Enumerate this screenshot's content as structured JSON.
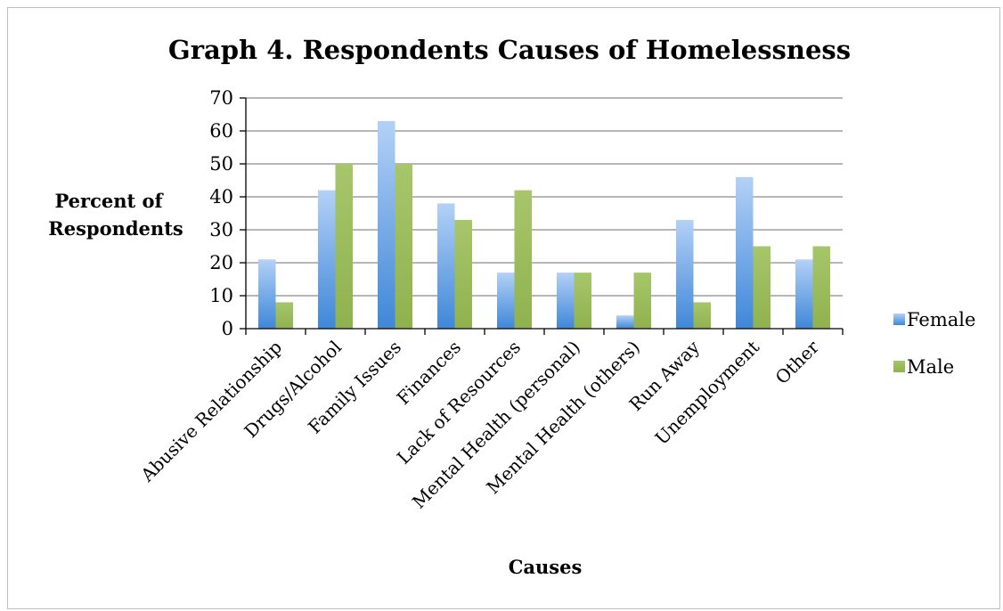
{
  "chart_data": {
    "type": "bar",
    "title": "Graph 4. Respondents Causes of Homelessness",
    "xlabel": "Causes",
    "ylabel_lines": [
      "Percent of",
      "Respondents"
    ],
    "ylim": [
      0,
      70
    ],
    "yticks": [
      0,
      10,
      20,
      30,
      40,
      50,
      60,
      70
    ],
    "grid": true,
    "legend_position": "right",
    "categories": [
      "Abusive Relationship",
      "Drugs/Alcohol",
      "Family Issues",
      "Finances",
      "Lack of Resources",
      "Mental Health (personal)",
      "Mental Health (others)",
      "Run Away",
      "Unemployment",
      "Other"
    ],
    "series": [
      {
        "name": "Female",
        "color": "#5b9bd5",
        "values": [
          21,
          42,
          63,
          38,
          17,
          17,
          4,
          33,
          46,
          21
        ]
      },
      {
        "name": "Male",
        "color": "#9bbb59",
        "values": [
          8,
          50,
          50,
          33,
          42,
          17,
          17,
          8,
          25,
          25
        ]
      }
    ]
  }
}
